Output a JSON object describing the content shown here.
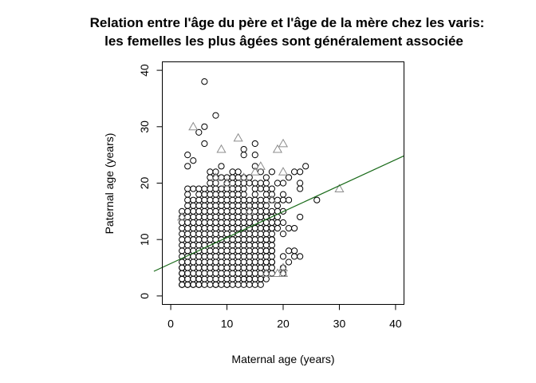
{
  "chart_data": {
    "type": "scatter",
    "title": "Relation entre l'âge du père et l'âge de la mère chez les varis:",
    "subtitle": "les femelles les plus âgées sont généralement associée",
    "xlabel": "Maternal age (years)",
    "ylabel": "Paternal age (years)",
    "xlim": [
      -1.5,
      41.5
    ],
    "ylim": [
      -1.5,
      41.5
    ],
    "x_ticks": [
      0,
      10,
      20,
      30,
      40
    ],
    "y_ticks": [
      0,
      10,
      20,
      30,
      40
    ],
    "x_tick_labels": [
      "0",
      "10",
      "20",
      "30",
      "40"
    ],
    "y_tick_labels": [
      "0",
      "10",
      "20",
      "30",
      "40"
    ],
    "grid": false,
    "legend": "none",
    "colors": {
      "circle": "#000000",
      "triangle": "#8c8c8c",
      "fit_line": "#1a6b1a"
    },
    "fit_line": {
      "intercept": 5.75,
      "slope": 0.46
    },
    "grid_cluster": {
      "description_only": false,
      "x_range": [
        2,
        18
      ],
      "y_range": [
        2,
        15
      ],
      "step": 1
    },
    "series": [
      {
        "marker": "circle",
        "points": [
          [
            6,
            38
          ],
          [
            8,
            32
          ],
          [
            6,
            30
          ],
          [
            5,
            29
          ],
          [
            6,
            27
          ],
          [
            3,
            25
          ],
          [
            4,
            24
          ],
          [
            3,
            23
          ],
          [
            9,
            23
          ],
          [
            7,
            22
          ],
          [
            8,
            22
          ],
          [
            11,
            22
          ],
          [
            12,
            22
          ],
          [
            13,
            26
          ],
          [
            13,
            25
          ],
          [
            15,
            27
          ],
          [
            15,
            25
          ],
          [
            3,
            19
          ],
          [
            4,
            19
          ],
          [
            3,
            18
          ],
          [
            3,
            17
          ],
          [
            4,
            17
          ],
          [
            3,
            16
          ],
          [
            4,
            16
          ],
          [
            5,
            19
          ],
          [
            6,
            19
          ],
          [
            7,
            19
          ],
          [
            8,
            19
          ],
          [
            9,
            19
          ],
          [
            10,
            19
          ],
          [
            11,
            19
          ],
          [
            12,
            19
          ],
          [
            13,
            19
          ],
          [
            5,
            18
          ],
          [
            6,
            18
          ],
          [
            7,
            18
          ],
          [
            8,
            18
          ],
          [
            9,
            18
          ],
          [
            10,
            18
          ],
          [
            11,
            18
          ],
          [
            12,
            18
          ],
          [
            13,
            18
          ],
          [
            5,
            17
          ],
          [
            6,
            17
          ],
          [
            7,
            17
          ],
          [
            8,
            17
          ],
          [
            9,
            17
          ],
          [
            10,
            17
          ],
          [
            11,
            17
          ],
          [
            12,
            17
          ],
          [
            13,
            17
          ],
          [
            14,
            17
          ],
          [
            5,
            16
          ],
          [
            6,
            16
          ],
          [
            7,
            16
          ],
          [
            8,
            16
          ],
          [
            9,
            16
          ],
          [
            10,
            16
          ],
          [
            11,
            16
          ],
          [
            12,
            16
          ],
          [
            13,
            16
          ],
          [
            14,
            16
          ],
          [
            15,
            16
          ],
          [
            16,
            16
          ],
          [
            17,
            16
          ],
          [
            7,
            21
          ],
          [
            8,
            21
          ],
          [
            9,
            21
          ],
          [
            10,
            21
          ],
          [
            11,
            21
          ],
          [
            12,
            21
          ],
          [
            13,
            21
          ],
          [
            14,
            21
          ],
          [
            7,
            20
          ],
          [
            8,
            20
          ],
          [
            10,
            20
          ],
          [
            11,
            20
          ],
          [
            12,
            20
          ],
          [
            13,
            20
          ],
          [
            14,
            20
          ],
          [
            15,
            20
          ],
          [
            16,
            20
          ],
          [
            17,
            20
          ],
          [
            15,
            19
          ],
          [
            16,
            19
          ],
          [
            17,
            19
          ],
          [
            18,
            19
          ],
          [
            15,
            18
          ],
          [
            17,
            18
          ],
          [
            18,
            18
          ],
          [
            15,
            17
          ],
          [
            16,
            17
          ],
          [
            17,
            17
          ],
          [
            18,
            17
          ],
          [
            19,
            17
          ],
          [
            16,
            22
          ],
          [
            18,
            22
          ],
          [
            15,
            23
          ],
          [
            17,
            21
          ],
          [
            19,
            20
          ],
          [
            19,
            16
          ],
          [
            19,
            15
          ],
          [
            19,
            14
          ],
          [
            19,
            13
          ],
          [
            19,
            12
          ],
          [
            20,
            20
          ],
          [
            20,
            18
          ],
          [
            20,
            17
          ],
          [
            20,
            15
          ],
          [
            20,
            13
          ],
          [
            20,
            11
          ],
          [
            20,
            7
          ],
          [
            20,
            5
          ],
          [
            20,
            4
          ],
          [
            21,
            21
          ],
          [
            21,
            17
          ],
          [
            21,
            12
          ],
          [
            21,
            8
          ],
          [
            21,
            6
          ],
          [
            22,
            22
          ],
          [
            22,
            12
          ],
          [
            22,
            8
          ],
          [
            22,
            7
          ],
          [
            23,
            22
          ],
          [
            23,
            20
          ],
          [
            23,
            19
          ],
          [
            23,
            14
          ],
          [
            23,
            7
          ],
          [
            24,
            23
          ],
          [
            26,
            17
          ],
          [
            2,
            5
          ],
          [
            2,
            4
          ],
          [
            2,
            3
          ],
          [
            2,
            2
          ],
          [
            3,
            2
          ],
          [
            4,
            2
          ],
          [
            5,
            2
          ],
          [
            8,
            2
          ],
          [
            10,
            2
          ],
          [
            5,
            3
          ],
          [
            13,
            3
          ],
          [
            14,
            3
          ],
          [
            17,
            3
          ],
          [
            16,
            3
          ],
          [
            18,
            4
          ],
          [
            18,
            6
          ],
          [
            18,
            8
          ],
          [
            18,
            10
          ],
          [
            18,
            12
          ],
          [
            18,
            14
          ],
          [
            17,
            4
          ],
          [
            17,
            6
          ],
          [
            17,
            8
          ],
          [
            17,
            10
          ],
          [
            17,
            12
          ],
          [
            17,
            14
          ]
        ]
      },
      {
        "marker": "triangle",
        "points": [
          [
            4,
            30
          ],
          [
            9,
            26
          ],
          [
            12,
            28
          ],
          [
            16,
            23
          ],
          [
            19,
            26
          ],
          [
            20,
            27
          ],
          [
            20,
            22
          ],
          [
            30,
            19
          ],
          [
            15,
            22
          ],
          [
            13,
            21
          ],
          [
            8,
            21
          ],
          [
            10,
            20
          ],
          [
            18,
            17
          ],
          [
            17,
            4
          ],
          [
            20,
            5
          ],
          [
            20,
            4
          ],
          [
            19,
            4
          ],
          [
            2,
            14
          ],
          [
            14,
            15
          ]
        ]
      }
    ]
  }
}
